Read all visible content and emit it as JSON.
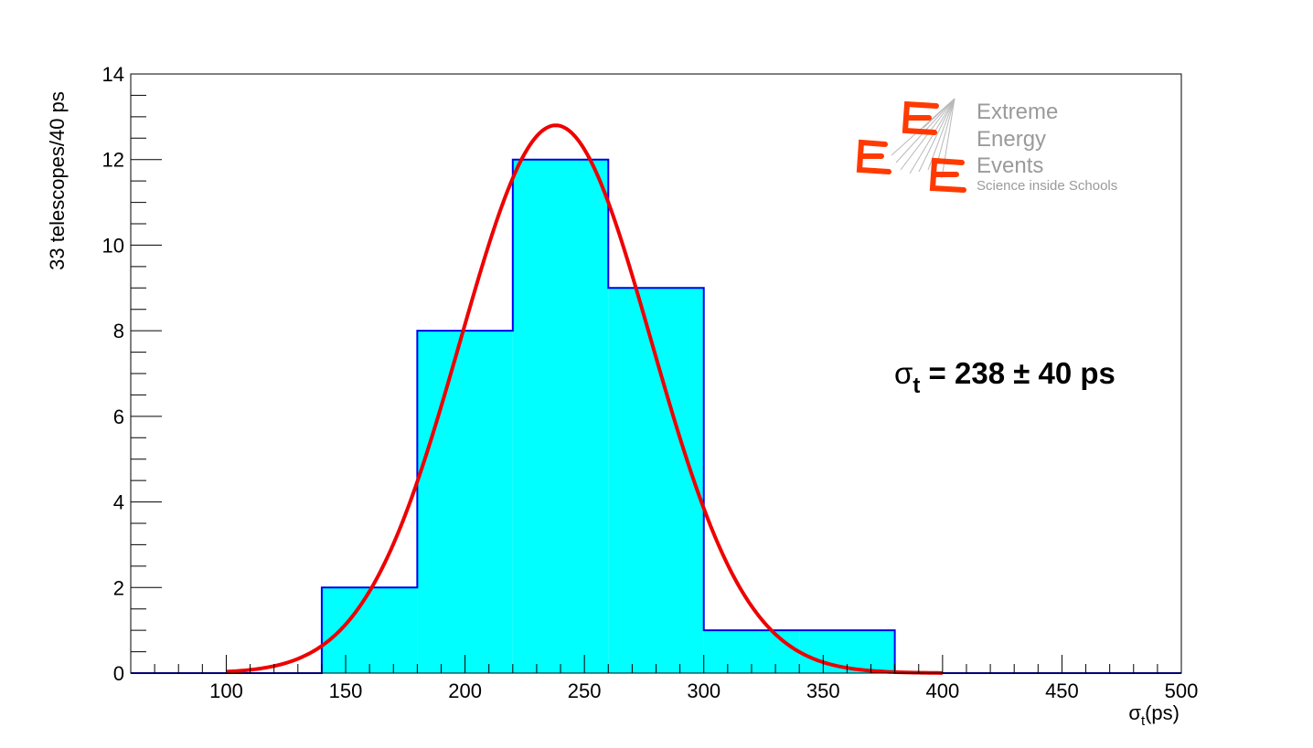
{
  "chart_data": {
    "type": "bar",
    "subtype": "histogram-with-gaussian-fit",
    "bins": [
      {
        "low": 140,
        "high": 180,
        "count": 2
      },
      {
        "low": 180,
        "high": 220,
        "count": 8
      },
      {
        "low": 220,
        "high": 260,
        "count": 12
      },
      {
        "low": 260,
        "high": 300,
        "count": 9
      },
      {
        "low": 300,
        "high": 340,
        "count": 1
      },
      {
        "low": 340,
        "high": 380,
        "count": 1
      }
    ],
    "fit": {
      "type": "gaussian",
      "mean": 238,
      "sigma": 40,
      "amplitude": 12.8,
      "range": [
        100,
        400
      ]
    },
    "xlim": [
      60,
      500
    ],
    "ylim": [
      0,
      14
    ],
    "x_ticks": [
      100,
      150,
      200,
      250,
      300,
      350,
      400,
      450,
      500
    ],
    "y_ticks": [
      0,
      2,
      4,
      6,
      8,
      10,
      12,
      14
    ],
    "ylabel": "33 telescopes/40 ps",
    "xlabel_symbol": "σ",
    "xlabel_sub": "t",
    "xlabel_unit": "(ps)",
    "annotation": {
      "symbol": "σ",
      "sub": "t",
      "text": " = 238 ± 40 ps"
    },
    "grid": false,
    "colors": {
      "fill": "#00ffff",
      "outline": "#0000ee",
      "fit": "#ee0000"
    }
  },
  "logo": {
    "lines": [
      "Extreme",
      "Energy",
      "Events"
    ],
    "tagline": "Science inside Schools",
    "color": "#9a9a9a",
    "accent": "#ff3a00"
  }
}
